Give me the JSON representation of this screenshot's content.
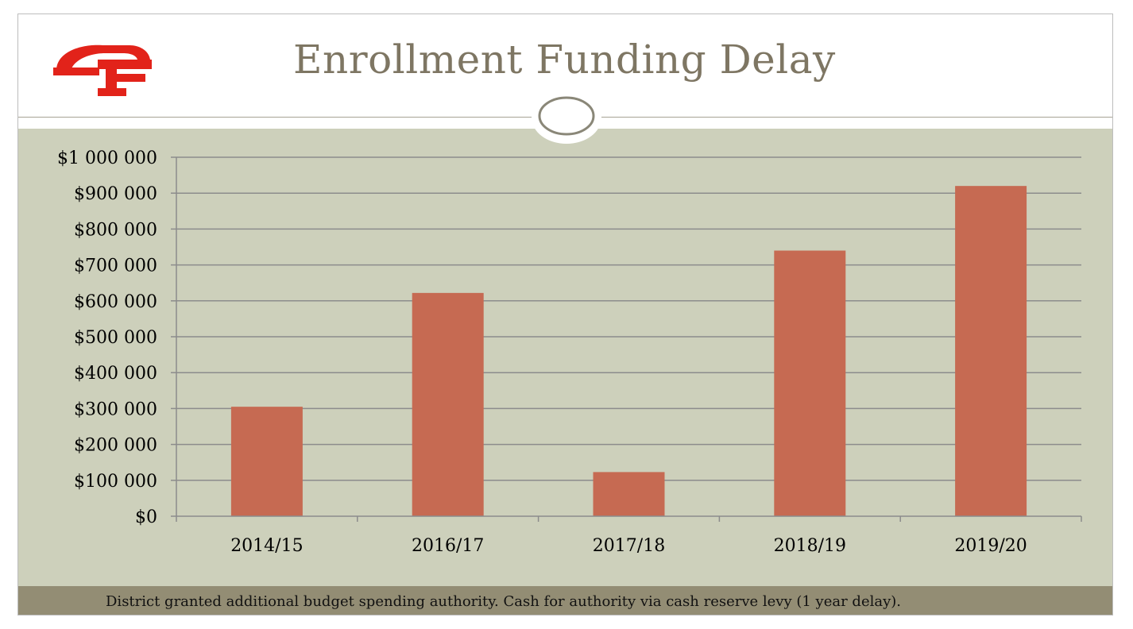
{
  "title": "Enrollment Funding Delay",
  "footer": "District granted additional budget spending authority.  Cash for authority via cash reserve levy (1 year delay).",
  "logo": {
    "icon": "cf-logo-icon",
    "color": "#e2231a"
  },
  "colors": {
    "bar": "#c66a52",
    "background": "#cdd0bb",
    "footer_band": "#938d74",
    "title": "#7e7663",
    "gridline": "#8c8c8c"
  },
  "chart_data": {
    "type": "bar",
    "title": "",
    "xlabel": "",
    "ylabel": "",
    "categories": [
      "2014/15",
      "2016/17",
      "2017/18",
      "2018/19",
      "2019/20"
    ],
    "values": [
      305000,
      622000,
      123000,
      740000,
      920000
    ],
    "ylim": [
      0,
      1000000
    ],
    "ytick_values": [
      0,
      100000,
      200000,
      300000,
      400000,
      500000,
      600000,
      700000,
      800000,
      900000,
      1000000
    ],
    "ytick_labels": [
      "$0",
      "$100 000",
      "$200 000",
      "$300 000",
      "$400 000",
      "$500 000",
      "$600 000",
      "$700 000",
      "$800 000",
      "$900 000",
      "$1 000 000"
    ],
    "grid": true,
    "legend": "none"
  }
}
